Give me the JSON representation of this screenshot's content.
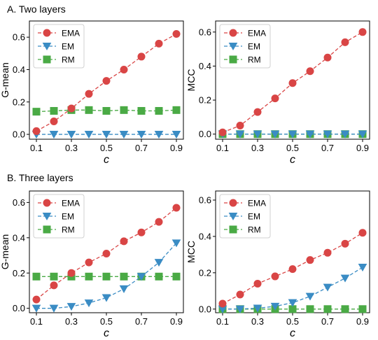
{
  "sections": [
    {
      "title": "A. Two layers"
    },
    {
      "title": "B. Three layers"
    }
  ],
  "colors": {
    "EMA": "#d94545",
    "EM": "#3a8cc4",
    "RM": "#4aaa45"
  },
  "chart_data": [
    {
      "type": "line",
      "section": "A. Two layers",
      "xlabel": "c",
      "ylabel": "G-mean",
      "x": [
        0.1,
        0.2,
        0.3,
        0.4,
        0.5,
        0.6,
        0.7,
        0.8,
        0.9
      ],
      "xticks": [
        0.1,
        0.3,
        0.5,
        0.7,
        0.9
      ],
      "yticks": [
        0.0,
        0.2,
        0.4,
        0.6
      ],
      "xlim": [
        0.06,
        0.94
      ],
      "ylim": [
        -0.03,
        0.7
      ],
      "grid": false,
      "legend": "top-left",
      "series": [
        {
          "name": "EMA",
          "marker": "circle",
          "values": [
            0.02,
            0.08,
            0.16,
            0.25,
            0.33,
            0.4,
            0.48,
            0.56,
            0.62
          ]
        },
        {
          "name": "EM",
          "marker": "triangle-down",
          "values": [
            0.0,
            0.0,
            0.0,
            0.0,
            0.0,
            0.0,
            0.0,
            0.0,
            0.0
          ]
        },
        {
          "name": "RM",
          "marker": "square",
          "values": [
            0.14,
            0.145,
            0.15,
            0.15,
            0.145,
            0.15,
            0.145,
            0.145,
            0.15
          ]
        }
      ]
    },
    {
      "type": "line",
      "section": "A. Two layers",
      "xlabel": "c",
      "ylabel": "MCC",
      "x": [
        0.1,
        0.2,
        0.3,
        0.4,
        0.5,
        0.6,
        0.7,
        0.8,
        0.9
      ],
      "xticks": [
        0.1,
        0.3,
        0.5,
        0.7,
        0.9
      ],
      "yticks": [
        0.0,
        0.2,
        0.4,
        0.6
      ],
      "xlim": [
        0.06,
        0.94
      ],
      "ylim": [
        -0.03,
        0.665
      ],
      "grid": false,
      "legend": "top-left",
      "series": [
        {
          "name": "EMA",
          "marker": "circle",
          "values": [
            0.01,
            0.05,
            0.13,
            0.21,
            0.3,
            0.37,
            0.45,
            0.54,
            0.6
          ]
        },
        {
          "name": "EM",
          "marker": "triangle-down",
          "values": [
            0.0,
            0.0,
            0.0,
            0.0,
            0.0,
            0.0,
            0.0,
            0.0,
            0.0
          ]
        },
        {
          "name": "RM",
          "marker": "square",
          "values": [
            0.0,
            0.0,
            0.0,
            0.0,
            0.0,
            0.0,
            0.0,
            0.0,
            0.0
          ]
        }
      ]
    },
    {
      "type": "line",
      "section": "B. Three layers",
      "xlabel": "c",
      "ylabel": "G-mean",
      "x": [
        0.1,
        0.2,
        0.3,
        0.4,
        0.5,
        0.6,
        0.7,
        0.8,
        0.9
      ],
      "xticks": [
        0.1,
        0.3,
        0.5,
        0.7,
        0.9
      ],
      "yticks": [
        0.0,
        0.2,
        0.4,
        0.6
      ],
      "xlim": [
        0.06,
        0.94
      ],
      "ylim": [
        -0.025,
        0.665
      ],
      "grid": false,
      "legend": "top-left",
      "series": [
        {
          "name": "EMA",
          "marker": "circle",
          "values": [
            0.05,
            0.13,
            0.2,
            0.26,
            0.31,
            0.38,
            0.43,
            0.49,
            0.57
          ]
        },
        {
          "name": "EM",
          "marker": "triangle-down",
          "values": [
            0.0,
            0.0,
            0.01,
            0.03,
            0.06,
            0.11,
            0.18,
            0.26,
            0.37
          ]
        },
        {
          "name": "RM",
          "marker": "square",
          "values": [
            0.18,
            0.18,
            0.18,
            0.18,
            0.18,
            0.18,
            0.18,
            0.18,
            0.18
          ]
        }
      ]
    },
    {
      "type": "line",
      "section": "B. Three layers",
      "xlabel": "c",
      "ylabel": "MCC",
      "x": [
        0.1,
        0.2,
        0.3,
        0.4,
        0.5,
        0.6,
        0.7,
        0.8,
        0.9
      ],
      "xticks": [
        0.1,
        0.3,
        0.5,
        0.7,
        0.9
      ],
      "yticks": [
        0.0,
        0.2,
        0.4,
        0.6
      ],
      "xlim": [
        0.06,
        0.94
      ],
      "ylim": [
        -0.02,
        0.65
      ],
      "grid": false,
      "legend": "top-left",
      "series": [
        {
          "name": "EMA",
          "marker": "circle",
          "values": [
            0.03,
            0.08,
            0.14,
            0.18,
            0.22,
            0.27,
            0.31,
            0.36,
            0.42
          ]
        },
        {
          "name": "EM",
          "marker": "triangle-down",
          "values": [
            0.0,
            0.0,
            0.005,
            0.015,
            0.035,
            0.07,
            0.12,
            0.17,
            0.23
          ]
        },
        {
          "name": "RM",
          "marker": "square",
          "values": [
            0.0,
            0.0,
            0.0,
            0.0,
            0.0,
            0.0,
            0.0,
            0.0,
            0.0
          ]
        }
      ]
    }
  ]
}
